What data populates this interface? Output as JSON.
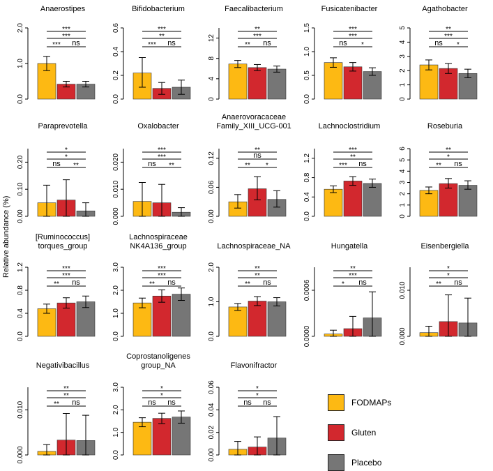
{
  "y_axis_label": "Relative abundance (%)",
  "colors": {
    "FODMAPs": "#FDB913",
    "Gluten": "#D2282E",
    "Placebo": "#767676"
  },
  "legend": [
    {
      "label": "FODMAPs",
      "color": "#FDB913"
    },
    {
      "label": "Gluten",
      "color": "#D2282E"
    },
    {
      "label": "Placebo",
      "color": "#767676"
    }
  ],
  "chart_data": [
    {
      "type": "bar",
      "title": [
        "Anaerostipes"
      ],
      "ylim": [
        0,
        2.0
      ],
      "ticks": [
        "0.0",
        "1.0",
        "2.0"
      ],
      "categories": [
        "FODMAPs",
        "Gluten",
        "Placebo"
      ],
      "values": [
        1.0,
        0.42,
        0.42
      ],
      "error_upper": [
        1.2,
        0.5,
        0.5
      ],
      "error_lower": [
        0.8,
        0.34,
        0.34
      ],
      "significance": [
        {
          "pair": [
            "FODMAPs",
            "Placebo"
          ],
          "label": "***"
        },
        {
          "pair": [
            "FODMAPs",
            "Placebo"
          ],
          "label": "***"
        },
        {
          "pair": [
            "FODMAPs",
            "Gluten"
          ],
          "label": "***"
        },
        {
          "pair": [
            "Gluten",
            "Placebo"
          ],
          "label": "ns"
        }
      ]
    },
    {
      "type": "bar",
      "title": [
        "Bifidobacterium"
      ],
      "ylim": [
        0,
        0.6
      ],
      "ticks": [
        "0.0",
        "0.2",
        "0.4",
        "0.6"
      ],
      "categories": [
        "FODMAPs",
        "Gluten",
        "Placebo"
      ],
      "values": [
        0.22,
        0.09,
        0.1
      ],
      "error_upper": [
        0.35,
        0.14,
        0.16
      ],
      "error_lower": [
        0.1,
        0.04,
        0.04
      ],
      "significance": [
        {
          "pair": [
            "FODMAPs",
            "Placebo"
          ],
          "label": "***"
        },
        {
          "pair": [
            "FODMAPs",
            "Placebo"
          ],
          "label": "**"
        },
        {
          "pair": [
            "FODMAPs",
            "Gluten"
          ],
          "label": "***"
        },
        {
          "pair": [
            "Gluten",
            "Placebo"
          ],
          "label": "ns"
        }
      ]
    },
    {
      "type": "bar",
      "title": [
        "Faecalibacterium"
      ],
      "ylim": [
        0,
        14
      ],
      "ticks": [
        "0",
        "4",
        "8",
        "12"
      ],
      "categories": [
        "FODMAPs",
        "Gluten",
        "Placebo"
      ],
      "values": [
        6.9,
        6.2,
        5.9
      ],
      "error_upper": [
        7.6,
        6.8,
        6.5
      ],
      "error_lower": [
        6.2,
        5.6,
        5.3
      ],
      "significance": [
        {
          "pair": [
            "FODMAPs",
            "Placebo"
          ],
          "label": "**"
        },
        {
          "pair": [
            "FODMAPs",
            "Placebo"
          ],
          "label": "***"
        },
        {
          "pair": [
            "FODMAPs",
            "Gluten"
          ],
          "label": "**"
        },
        {
          "pair": [
            "Gluten",
            "Placebo"
          ],
          "label": "ns"
        }
      ]
    },
    {
      "type": "bar",
      "title": [
        "Fusicatenibacter"
      ],
      "ylim": [
        0,
        1.5
      ],
      "ticks": [
        "0.0",
        "0.5",
        "1.0",
        "1.5"
      ],
      "categories": [
        "FODMAPs",
        "Gluten",
        "Placebo"
      ],
      "values": [
        0.77,
        0.68,
        0.58
      ],
      "error_upper": [
        0.87,
        0.77,
        0.66
      ],
      "error_lower": [
        0.67,
        0.59,
        0.5
      ],
      "significance": [
        {
          "pair": [
            "FODMAPs",
            "Placebo"
          ],
          "label": "***"
        },
        {
          "pair": [
            "FODMAPs",
            "Placebo"
          ],
          "label": "***"
        },
        {
          "pair": [
            "FODMAPs",
            "Gluten"
          ],
          "label": "ns"
        },
        {
          "pair": [
            "Gluten",
            "Placebo"
          ],
          "label": "*"
        }
      ]
    },
    {
      "type": "bar",
      "title": [
        "Agathobacter"
      ],
      "ylim": [
        0,
        5
      ],
      "ticks": [
        "0",
        "1",
        "2",
        "3",
        "4",
        "5"
      ],
      "categories": [
        "FODMAPs",
        "Gluten",
        "Placebo"
      ],
      "values": [
        2.4,
        2.15,
        1.8
      ],
      "error_upper": [
        2.75,
        2.5,
        2.1
      ],
      "error_lower": [
        2.05,
        1.8,
        1.5
      ],
      "significance": [
        {
          "pair": [
            "FODMAPs",
            "Placebo"
          ],
          "label": "**"
        },
        {
          "pair": [
            "FODMAPs",
            "Placebo"
          ],
          "label": "***"
        },
        {
          "pair": [
            "FODMAPs",
            "Gluten"
          ],
          "label": "ns"
        },
        {
          "pair": [
            "Gluten",
            "Placebo"
          ],
          "label": "*"
        }
      ]
    },
    {
      "type": "bar",
      "title": [
        "Paraprevotella"
      ],
      "ylim": [
        0,
        0.25
      ],
      "ticks": [
        "0.00",
        "0.10",
        "0.20"
      ],
      "categories": [
        "FODMAPs",
        "Gluten",
        "Placebo"
      ],
      "values": [
        0.05,
        0.06,
        0.02
      ],
      "error_upper": [
        0.115,
        0.135,
        0.05
      ],
      "error_lower": [
        0.0,
        0.0,
        0.0
      ],
      "significance": [
        {
          "pair": [
            "FODMAPs",
            "Placebo"
          ],
          "label": "*"
        },
        {
          "pair": [
            "FODMAPs",
            "Placebo"
          ],
          "label": "*"
        },
        {
          "pair": [
            "FODMAPs",
            "Gluten"
          ],
          "label": "ns"
        },
        {
          "pair": [
            "Gluten",
            "Placebo"
          ],
          "label": "**"
        }
      ]
    },
    {
      "type": "bar",
      "title": [
        "Oxalobacter"
      ],
      "ylim": [
        0,
        0.025
      ],
      "ticks": [
        "0.000",
        "0.010",
        "0.020"
      ],
      "categories": [
        "FODMAPs",
        "Gluten",
        "Placebo"
      ],
      "values": [
        0.0055,
        0.005,
        0.0015
      ],
      "error_upper": [
        0.0125,
        0.0118,
        0.0032
      ],
      "error_lower": [
        0.0,
        0.0,
        0.0
      ],
      "significance": [
        {
          "pair": [
            "FODMAPs",
            "Placebo"
          ],
          "label": "***"
        },
        {
          "pair": [
            "FODMAPs",
            "Placebo"
          ],
          "label": "***"
        },
        {
          "pair": [
            "FODMAPs",
            "Gluten"
          ],
          "label": "ns"
        },
        {
          "pair": [
            "Gluten",
            "Placebo"
          ],
          "label": "**"
        }
      ]
    },
    {
      "type": "bar",
      "title": [
        "Anaerovoracaceae",
        "Family_XIII_UCG-001"
      ],
      "ylim": [
        0,
        0.14
      ],
      "ticks": [
        "0.00",
        "0.06",
        "0.12"
      ],
      "categories": [
        "FODMAPs",
        "Gluten",
        "Placebo"
      ],
      "values": [
        0.03,
        0.057,
        0.035
      ],
      "error_upper": [
        0.045,
        0.082,
        0.053
      ],
      "error_lower": [
        0.017,
        0.034,
        0.019
      ],
      "significance": [
        {
          "pair": [
            "FODMAPs",
            "Placebo"
          ],
          "label": "**"
        },
        {
          "pair": [
            "FODMAPs",
            "Placebo"
          ],
          "label": "ns"
        },
        {
          "pair": [
            "FODMAPs",
            "Gluten"
          ],
          "label": "**"
        },
        {
          "pair": [
            "Gluten",
            "Placebo"
          ],
          "label": "*"
        }
      ]
    },
    {
      "type": "bar",
      "title": [
        "Lachnoclostridium"
      ],
      "ylim": [
        0,
        1.4
      ],
      "ticks": [
        "0.0",
        "0.4",
        "0.8",
        "1.2"
      ],
      "categories": [
        "FODMAPs",
        "Gluten",
        "Placebo"
      ],
      "values": [
        0.56,
        0.73,
        0.68
      ],
      "error_upper": [
        0.63,
        0.82,
        0.77
      ],
      "error_lower": [
        0.49,
        0.64,
        0.6
      ],
      "significance": [
        {
          "pair": [
            "FODMAPs",
            "Placebo"
          ],
          "label": "***"
        },
        {
          "pair": [
            "FODMAPs",
            "Placebo"
          ],
          "label": "**"
        },
        {
          "pair": [
            "FODMAPs",
            "Gluten"
          ],
          "label": "***"
        },
        {
          "pair": [
            "Gluten",
            "Placebo"
          ],
          "label": "ns"
        }
      ]
    },
    {
      "type": "bar",
      "title": [
        "Roseburia"
      ],
      "ylim": [
        0,
        6
      ],
      "ticks": [
        "0",
        "1",
        "2",
        "3",
        "4",
        "5",
        "6"
      ],
      "categories": [
        "FODMAPs",
        "Gluten",
        "Placebo"
      ],
      "values": [
        2.3,
        2.9,
        2.75
      ],
      "error_upper": [
        2.6,
        3.35,
        3.15
      ],
      "error_lower": [
        2.0,
        2.5,
        2.4
      ],
      "significance": [
        {
          "pair": [
            "FODMAPs",
            "Placebo"
          ],
          "label": "**"
        },
        {
          "pair": [
            "FODMAPs",
            "Placebo"
          ],
          "label": "*"
        },
        {
          "pair": [
            "FODMAPs",
            "Gluten"
          ],
          "label": "**"
        },
        {
          "pair": [
            "Gluten",
            "Placebo"
          ],
          "label": "ns"
        }
      ]
    },
    {
      "type": "bar",
      "title": [
        "[Ruminococcus]",
        "torques_group"
      ],
      "ylim": [
        0,
        1.2
      ],
      "ticks": [
        "0.0",
        "0.4",
        "0.8",
        "1.2"
      ],
      "categories": [
        "FODMAPs",
        "Gluten",
        "Placebo"
      ],
      "values": [
        0.48,
        0.58,
        0.6
      ],
      "error_upper": [
        0.56,
        0.67,
        0.7
      ],
      "error_lower": [
        0.4,
        0.49,
        0.5
      ],
      "significance": [
        {
          "pair": [
            "FODMAPs",
            "Placebo"
          ],
          "label": "***"
        },
        {
          "pair": [
            "FODMAPs",
            "Placebo"
          ],
          "label": "***"
        },
        {
          "pair": [
            "FODMAPs",
            "Gluten"
          ],
          "label": "**"
        },
        {
          "pair": [
            "Gluten",
            "Placebo"
          ],
          "label": "ns"
        }
      ]
    },
    {
      "type": "bar",
      "title": [
        "Lachnospiraceae",
        "NK4A136_group"
      ],
      "ylim": [
        0,
        3.0
      ],
      "ticks": [
        "0.0",
        "1.0",
        "2.0",
        "3.0"
      ],
      "categories": [
        "FODMAPs",
        "Gluten",
        "Placebo"
      ],
      "values": [
        1.45,
        1.75,
        1.83
      ],
      "error_upper": [
        1.66,
        2.02,
        2.1
      ],
      "error_lower": [
        1.24,
        1.48,
        1.56
      ],
      "significance": [
        {
          "pair": [
            "FODMAPs",
            "Placebo"
          ],
          "label": "***"
        },
        {
          "pair": [
            "FODMAPs",
            "Placebo"
          ],
          "label": "***"
        },
        {
          "pair": [
            "FODMAPs",
            "Gluten"
          ],
          "label": "**"
        },
        {
          "pair": [
            "Gluten",
            "Placebo"
          ],
          "label": "ns"
        }
      ]
    },
    {
      "type": "bar",
      "title": [
        "Lachnospiraceae_NA"
      ],
      "ylim": [
        0,
        2.0
      ],
      "ticks": [
        "0.0",
        "1.0",
        "2.0"
      ],
      "categories": [
        "FODMAPs",
        "Gluten",
        "Placebo"
      ],
      "values": [
        0.85,
        1.02,
        1.0
      ],
      "error_upper": [
        0.95,
        1.15,
        1.12
      ],
      "error_lower": [
        0.75,
        0.89,
        0.88
      ],
      "significance": [
        {
          "pair": [
            "FODMAPs",
            "Placebo"
          ],
          "label": "**"
        },
        {
          "pair": [
            "FODMAPs",
            "Placebo"
          ],
          "label": "**"
        },
        {
          "pair": [
            "FODMAPs",
            "Gluten"
          ],
          "label": "**"
        },
        {
          "pair": [
            "Gluten",
            "Placebo"
          ],
          "label": "ns"
        }
      ]
    },
    {
      "type": "bar",
      "title": [
        "Hungatella"
      ],
      "ylim": [
        0,
        0.0009
      ],
      "ticks": [
        "0.0000",
        "0.0006"
      ],
      "categories": [
        "FODMAPs",
        "Gluten",
        "Placebo"
      ],
      "values": [
        3e-05,
        0.0001,
        0.00024
      ],
      "error_upper": [
        8e-05,
        0.00026,
        0.00058
      ],
      "error_lower": [
        0.0,
        0.0,
        0.0
      ],
      "significance": [
        {
          "pair": [
            "FODMAPs",
            "Placebo"
          ],
          "label": "**"
        },
        {
          "pair": [
            "FODMAPs",
            "Placebo"
          ],
          "label": "***"
        },
        {
          "pair": [
            "FODMAPs",
            "Gluten"
          ],
          "label": "*"
        },
        {
          "pair": [
            "Gluten",
            "Placebo"
          ],
          "label": "ns"
        }
      ]
    },
    {
      "type": "bar",
      "title": [
        "Eisenbergiella"
      ],
      "ylim": [
        0,
        0.015
      ],
      "ticks": [
        "0.000",
        "0.010"
      ],
      "categories": [
        "FODMAPs",
        "Gluten",
        "Placebo"
      ],
      "values": [
        0.0008,
        0.0032,
        0.0029
      ],
      "error_upper": [
        0.0022,
        0.009,
        0.0083
      ],
      "error_lower": [
        0.0,
        0.0,
        0.0
      ],
      "significance": [
        {
          "pair": [
            "FODMAPs",
            "Placebo"
          ],
          "label": "*"
        },
        {
          "pair": [
            "FODMAPs",
            "Placebo"
          ],
          "label": "*"
        },
        {
          "pair": [
            "FODMAPs",
            "Gluten"
          ],
          "label": "**"
        },
        {
          "pair": [
            "Gluten",
            "Placebo"
          ],
          "label": "ns"
        }
      ]
    },
    {
      "type": "bar",
      "title": [
        "Negativibacillus"
      ],
      "ylim": [
        0,
        0.015
      ],
      "ticks": [
        "0.000",
        "0.010"
      ],
      "categories": [
        "FODMAPs",
        "Gluten",
        "Placebo"
      ],
      "values": [
        0.0008,
        0.0033,
        0.0032
      ],
      "error_upper": [
        0.0023,
        0.0092,
        0.0088
      ],
      "error_lower": [
        0.0,
        0.0,
        0.0
      ],
      "significance": [
        {
          "pair": [
            "FODMAPs",
            "Placebo"
          ],
          "label": "**"
        },
        {
          "pair": [
            "FODMAPs",
            "Placebo"
          ],
          "label": "**"
        },
        {
          "pair": [
            "FODMAPs",
            "Gluten"
          ],
          "label": "**"
        },
        {
          "pair": [
            "Gluten",
            "Placebo"
          ],
          "label": "ns"
        }
      ]
    },
    {
      "type": "bar",
      "title": [
        "Coprostanoligenes",
        "group_NA"
      ],
      "ylim": [
        0,
        3.0
      ],
      "ticks": [
        "0.0",
        "1.0",
        "2.0",
        "3.0"
      ],
      "categories": [
        "FODMAPs",
        "Gluten",
        "Placebo"
      ],
      "values": [
        1.45,
        1.62,
        1.68
      ],
      "error_upper": [
        1.65,
        1.85,
        1.95
      ],
      "error_lower": [
        1.25,
        1.39,
        1.41
      ],
      "significance": [
        {
          "pair": [
            "FODMAPs",
            "Placebo"
          ],
          "label": "*"
        },
        {
          "pair": [
            "FODMAPs",
            "Placebo"
          ],
          "label": "*"
        },
        {
          "pair": [
            "FODMAPs",
            "Gluten"
          ],
          "label": "ns"
        },
        {
          "pair": [
            "Gluten",
            "Placebo"
          ],
          "label": "ns"
        }
      ]
    },
    {
      "type": "bar",
      "title": [
        "Flavonifractor"
      ],
      "ylim": [
        0,
        0.06
      ],
      "ticks": [
        "0.00",
        "0.02",
        "0.04",
        "0.06"
      ],
      "categories": [
        "FODMAPs",
        "Gluten",
        "Placebo"
      ],
      "values": [
        0.005,
        0.007,
        0.015
      ],
      "error_upper": [
        0.012,
        0.016,
        0.034
      ],
      "error_lower": [
        0.0,
        0.0,
        0.0
      ],
      "significance": [
        {
          "pair": [
            "FODMAPs",
            "Placebo"
          ],
          "label": "*"
        },
        {
          "pair": [
            "FODMAPs",
            "Placebo"
          ],
          "label": "*"
        },
        {
          "pair": [
            "FODMAPs",
            "Gluten"
          ],
          "label": "ns"
        },
        {
          "pair": [
            "Gluten",
            "Placebo"
          ],
          "label": "ns"
        }
      ]
    }
  ]
}
